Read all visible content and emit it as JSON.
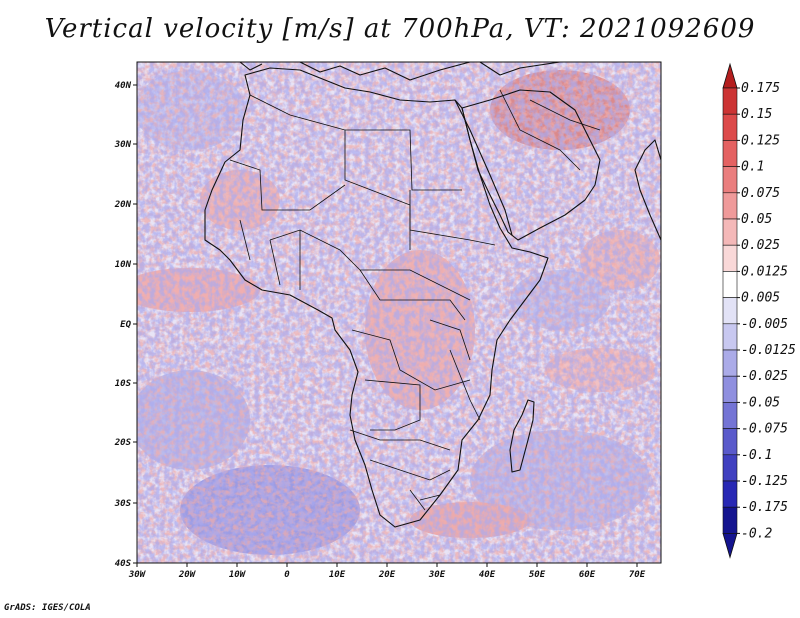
{
  "title": "Vertical velocity [m/s] at 700hPa, VT: 2021092609",
  "credit": "GrADS: IGES/COLA",
  "map": {
    "lon_ticks": [
      "30W",
      "20W",
      "10W",
      "0",
      "10E",
      "20E",
      "30E",
      "40E",
      "50E",
      "60E",
      "70E"
    ],
    "lat_ticks": [
      "40N",
      "30N",
      "20N",
      "10N",
      "EQ",
      "10S",
      "20S",
      "30S",
      "40S"
    ],
    "lon_range": [
      -30,
      75
    ],
    "lat_range": [
      -40,
      45
    ]
  },
  "colorbar": {
    "levels": [
      "0.175",
      "0.15",
      "0.125",
      "0.1",
      "0.075",
      "0.05",
      "0.025",
      "0.0125",
      "0.005",
      "-0.005",
      "-0.0125",
      "-0.025",
      "-0.05",
      "-0.075",
      "-0.1",
      "-0.125",
      "-0.175",
      "-0.2"
    ],
    "colors": [
      "#b41e1e",
      "#cc3434",
      "#dc4a4a",
      "#e46262",
      "#ea7e7e",
      "#ef9a9a",
      "#f4b8b8",
      "#f9d8d8",
      "#ffffff",
      "#e2e2f6",
      "#c8c8f0",
      "#ababe8",
      "#8f8fdf",
      "#7474d5",
      "#5a5acb",
      "#4040c0",
      "#2828b4",
      "#14148f"
    ]
  }
}
